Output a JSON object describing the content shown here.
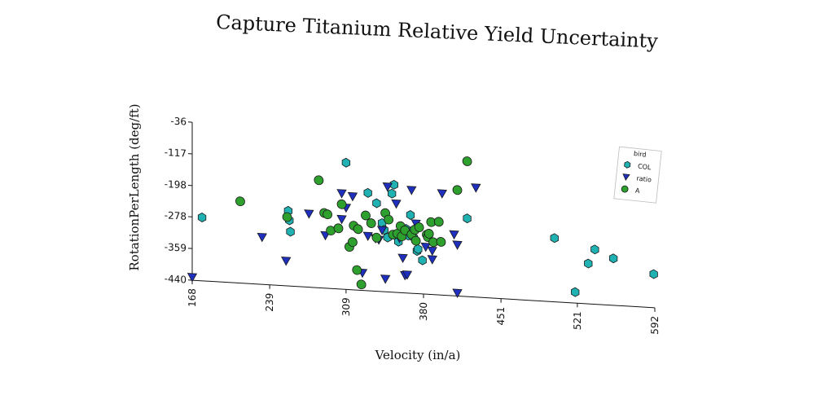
{
  "chart_data": {
    "type": "scatter",
    "title": "Capture Titanium Relative Yield Uncertainty",
    "xlabel": "Velocity (in/a)",
    "ylabel": "RotationPerLength (deg/ft)",
    "x_ticks": [
      "168",
      "239",
      "309",
      "380",
      "451",
      "521",
      "592"
    ],
    "y_ticks": [
      "-36",
      "-117",
      "-198",
      "-278",
      "-359",
      "-440"
    ],
    "xlim": [
      168,
      592
    ],
    "ylim": [
      -440,
      -36
    ],
    "grid": false,
    "legend_title": "bird",
    "legend_position": "right",
    "series": [
      {
        "name": "COL",
        "marker": "hexagon",
        "color": "#20b2b2",
        "points": [
          [
            177,
            -278
          ],
          [
            256,
            -248
          ],
          [
            257,
            -272
          ],
          [
            258,
            -301
          ],
          [
            309,
            -116
          ],
          [
            329,
            -190
          ],
          [
            337,
            -215
          ],
          [
            342,
            -265
          ],
          [
            344,
            -282
          ],
          [
            347,
            -301
          ],
          [
            351,
            -188
          ],
          [
            353,
            -165
          ],
          [
            357,
            -310
          ],
          [
            364,
            -276
          ],
          [
            366,
            -293
          ],
          [
            368,
            -240
          ],
          [
            370,
            -280
          ],
          [
            371,
            -297
          ],
          [
            374,
            -331
          ],
          [
            375,
            -326
          ],
          [
            379,
            -354
          ],
          [
            420,
            -240
          ],
          [
            500,
            -277
          ],
          [
            519,
            -412
          ],
          [
            531,
            -337
          ],
          [
            537,
            -300
          ],
          [
            554,
            -320
          ],
          [
            591,
            -354
          ]
        ]
      },
      {
        "name": "ratio",
        "marker": "triangle_down",
        "color": "#1f2fbe",
        "points": [
          [
            168,
            -432
          ],
          [
            232,
            -319
          ],
          [
            254,
            -376
          ],
          [
            275,
            -252
          ],
          [
            290,
            -305
          ],
          [
            305,
            -195
          ],
          [
            305,
            -261
          ],
          [
            309,
            -231
          ],
          [
            315,
            -201
          ],
          [
            324,
            -395
          ],
          [
            329,
            -300
          ],
          [
            336,
            -305
          ],
          [
            339,
            -308
          ],
          [
            342,
            -283
          ],
          [
            345,
            -407
          ],
          [
            347,
            -171
          ],
          [
            355,
            -213
          ],
          [
            358,
            -301
          ],
          [
            361,
            -351
          ],
          [
            363,
            -395
          ],
          [
            365,
            -393
          ],
          [
            369,
            -176
          ],
          [
            373,
            -261
          ],
          [
            382,
            -319
          ],
          [
            388,
            -350
          ],
          [
            388,
            -328
          ],
          [
            397,
            -180
          ],
          [
            408,
            -283
          ],
          [
            411,
            -432
          ],
          [
            411,
            -309
          ],
          [
            428,
            -160
          ]
        ]
      },
      {
        "name": "A",
        "marker": "circle",
        "color": "#2ea02e",
        "points": [
          [
            212,
            -231
          ],
          [
            255,
            -264
          ],
          [
            284,
            -165
          ],
          [
            289,
            -248
          ],
          [
            292,
            -251
          ],
          [
            295,
            -292
          ],
          [
            302,
            -285
          ],
          [
            305,
            -223
          ],
          [
            312,
            -331
          ],
          [
            315,
            -318
          ],
          [
            316,
            -276
          ],
          [
            319,
            -389
          ],
          [
            320,
            -284
          ],
          [
            323,
            -425
          ],
          [
            327,
            -248
          ],
          [
            332,
            -267
          ],
          [
            337,
            -303
          ],
          [
            345,
            -239
          ],
          [
            348,
            -255
          ],
          [
            352,
            -293
          ],
          [
            356,
            -290
          ],
          [
            359,
            -270
          ],
          [
            360,
            -296
          ],
          [
            363,
            -280
          ],
          [
            369,
            -290
          ],
          [
            372,
            -277
          ],
          [
            373,
            -305
          ],
          [
            376,
            -270
          ],
          [
            383,
            -288
          ],
          [
            384,
            -294
          ],
          [
            385,
            -285
          ],
          [
            387,
            -255
          ],
          [
            389,
            -306
          ],
          [
            394,
            -253
          ],
          [
            396,
            -304
          ],
          [
            411,
            -169
          ],
          [
            420,
            -94
          ]
        ]
      }
    ]
  }
}
